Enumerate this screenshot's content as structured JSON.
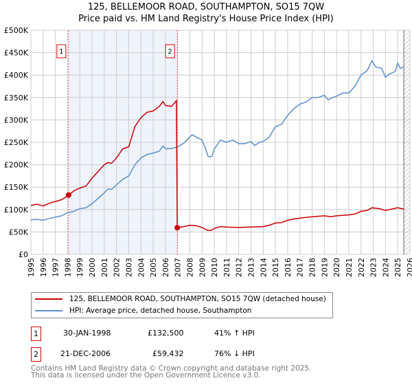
{
  "chart_data": {
    "type": "line",
    "title": "125, BELLEMOOR ROAD, SOUTHAMPTON, SO15 7QW",
    "subtitle": "Price paid vs. HM Land Registry's House Price Index (HPI)",
    "xlim": [
      1995,
      2026
    ],
    "ylim": [
      0,
      500000
    ],
    "x_ticks": [
      "1995",
      "1996",
      "1997",
      "1998",
      "1999",
      "2000",
      "2001",
      "2002",
      "2003",
      "2004",
      "2005",
      "2006",
      "2007",
      "2008",
      "2009",
      "2010",
      "2011",
      "2012",
      "2013",
      "2014",
      "2015",
      "2016",
      "2017",
      "2018",
      "2019",
      "2020",
      "2021",
      "2022",
      "2023",
      "2024",
      "2025",
      "2026"
    ],
    "y_ticks": [
      {
        "v": 0,
        "label": "£0"
      },
      {
        "v": 50000,
        "label": "£50K"
      },
      {
        "v": 100000,
        "label": "£100K"
      },
      {
        "v": 150000,
        "label": "£150K"
      },
      {
        "v": 200000,
        "label": "£200K"
      },
      {
        "v": 250000,
        "label": "£250K"
      },
      {
        "v": 300000,
        "label": "£300K"
      },
      {
        "v": 350000,
        "label": "£350K"
      },
      {
        "v": 400000,
        "label": "£400K"
      },
      {
        "v": 450000,
        "label": "£450K"
      },
      {
        "v": 500000,
        "label": "£500K"
      }
    ],
    "grid": true,
    "shaded_range": [
      1998.08,
      2006.97
    ],
    "forecast_hatch_from": 2025.5,
    "series": [
      {
        "name": "125, BELLEMOOR ROAD, SOUTHAMPTON, SO15 7QW (detached house)",
        "color": "#cc0000",
        "x": [
          1995,
          1995.5,
          1996,
          1996.5,
          1997,
          1997.5,
          1998,
          1998.08,
          1998.6,
          1999,
          1999.5,
          2000,
          2000.5,
          2001,
          2001.3,
          2001.6,
          2002,
          2002.5,
          2003,
          2003.5,
          2004,
          2004.5,
          2005,
          2005.5,
          2005.8,
          2006,
          2006.5,
          2006.9,
          2006.97,
          2007.5,
          2008,
          2008.5,
          2009,
          2009.5,
          2009.8,
          2010,
          2010.5,
          2011,
          2012,
          2013,
          2014,
          2014.5,
          2015,
          2015.5,
          2016,
          2016.5,
          2017,
          2018,
          2019,
          2019.5,
          2020,
          2021,
          2021.5,
          2022,
          2022.5,
          2022.9,
          2023.5,
          2024,
          2024.5,
          2025,
          2025.5
        ],
        "y": [
          109000,
          112000,
          108000,
          114000,
          118000,
          122000,
          130000,
          132500,
          143000,
          148000,
          152000,
          170000,
          185000,
          200000,
          205000,
          203000,
          215000,
          235000,
          240000,
          285000,
          305000,
          317000,
          320000,
          330000,
          341000,
          332000,
          330000,
          343000,
          59432,
          62000,
          65000,
          64000,
          60000,
          53000,
          54000,
          58000,
          62000,
          61000,
          60000,
          61000,
          62000,
          65000,
          70000,
          71000,
          76000,
          79000,
          81000,
          84000,
          86000,
          84000,
          86000,
          88000,
          90000,
          96000,
          98000,
          104000,
          102000,
          98000,
          101000,
          104000,
          101000
        ]
      },
      {
        "name": "HPI: Average price, detached house, Southampton",
        "color": "#5b8fd0",
        "x": [
          1995,
          1995.5,
          1996,
          1996.5,
          1997,
          1997.5,
          1998,
          1998.5,
          1999,
          1999.5,
          2000,
          2000.5,
          2001,
          2001.3,
          2001.6,
          2002,
          2002.5,
          2003,
          2003.5,
          2004,
          2004.5,
          2005,
          2005.5,
          2005.8,
          2006,
          2006.5,
          2007,
          2007.5,
          2008,
          2008.2,
          2008.5,
          2009,
          2009.3,
          2009.5,
          2009.8,
          2010,
          2010.5,
          2011,
          2011.5,
          2012,
          2012.5,
          2013,
          2013.3,
          2013.7,
          2014,
          2014.5,
          2015,
          2015.5,
          2016,
          2016.5,
          2017,
          2017.5,
          2018,
          2018.5,
          2019,
          2019.3,
          2019.7,
          2020,
          2020.5,
          2021,
          2021.5,
          2022,
          2022.5,
          2022.9,
          2023.2,
          2023.7,
          2024,
          2024.3,
          2024.8,
          2025,
          2025.2,
          2025.5
        ],
        "y": [
          77000,
          78000,
          76000,
          80000,
          83000,
          86000,
          93000,
          96000,
          102000,
          104000,
          113000,
          125000,
          137000,
          146000,
          145000,
          155000,
          167000,
          175000,
          200000,
          215000,
          223000,
          226000,
          230000,
          242000,
          236000,
          236000,
          240000,
          248000,
          262000,
          267000,
          262000,
          255000,
          235000,
          218000,
          218000,
          235000,
          255000,
          250000,
          255000,
          247000,
          247000,
          252000,
          243000,
          250000,
          252000,
          262000,
          285000,
          290000,
          310000,
          325000,
          335000,
          340000,
          350000,
          350000,
          355000,
          345000,
          350000,
          353000,
          360000,
          360000,
          375000,
          400000,
          410000,
          432000,
          418000,
          415000,
          395000,
          402000,
          408000,
          427000,
          415000,
          418000
        ]
      }
    ],
    "annotations": [
      {
        "label": "1",
        "x": 1998.08,
        "y": 132500
      },
      {
        "label": "2",
        "x": 2006.97,
        "y": 59432
      }
    ]
  },
  "sales": [
    {
      "num": "1",
      "date": "30-JAN-1998",
      "price": "£132,500",
      "hpi": "41% ↑ HPI"
    },
    {
      "num": "2",
      "date": "21-DEC-2006",
      "price": "£59,432",
      "hpi": "76% ↓ HPI"
    }
  ],
  "footer": {
    "line1": "Contains HM Land Registry data © Crown copyright and database right 2025.",
    "line2": "This data is licensed under the Open Government Licence v3.0."
  }
}
